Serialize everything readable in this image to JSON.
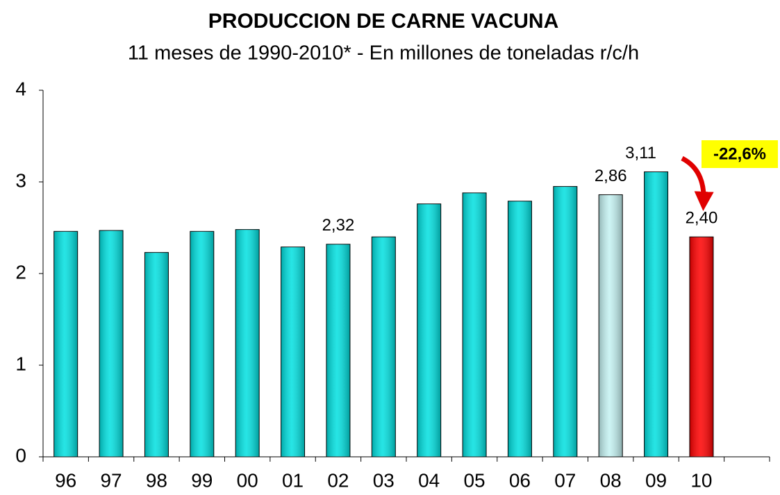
{
  "chart_data": {
    "type": "bar",
    "title": "PRODUCCION DE CARNE VACUNA",
    "subtitle": "11 meses de 1990-2010* - En millones de toneladas r/c/h",
    "categories": [
      "96",
      "97",
      "98",
      "99",
      "00",
      "01",
      "02",
      "03",
      "04",
      "05",
      "06",
      "07",
      "08",
      "09",
      "10",
      null
    ],
    "values": [
      2.46,
      2.47,
      2.23,
      2.46,
      2.48,
      2.29,
      2.32,
      2.4,
      2.76,
      2.88,
      2.79,
      2.95,
      2.86,
      3.11,
      2.4,
      null
    ],
    "value_labels": [
      null,
      null,
      null,
      null,
      null,
      null,
      "2,32",
      null,
      null,
      null,
      null,
      null,
      "2,86",
      "3,11",
      "2,40",
      null
    ],
    "colors": [
      "#00e0e0",
      "#00e0e0",
      "#00e0e0",
      "#00e0e0",
      "#00e0e0",
      "#00e0e0",
      "#00e0e0",
      "#00e0e0",
      "#00e0e0",
      "#00e0e0",
      "#00e0e0",
      "#00e0e0",
      "#c4f2f2",
      "#00e0e0",
      "#ff0000",
      null
    ],
    "ylim": [
      0,
      4
    ],
    "yticks": [
      0,
      1,
      2,
      3,
      4
    ],
    "annotation": "-22,6%"
  }
}
